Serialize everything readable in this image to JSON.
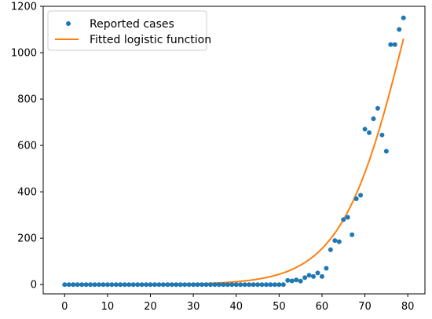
{
  "chart_data": {
    "type": "scatter",
    "xlim": [
      -5,
      84
    ],
    "ylim": [
      -40,
      1200
    ],
    "xticks": [
      0,
      10,
      20,
      30,
      40,
      50,
      60,
      70,
      80
    ],
    "yticks": [
      0,
      200,
      400,
      600,
      800,
      1000,
      1200
    ],
    "legend_position": "upper-left",
    "series": [
      {
        "name": "Reported cases",
        "kind": "markers",
        "color": "#1f77b4",
        "x": [
          0,
          1,
          2,
          3,
          4,
          5,
          6,
          7,
          8,
          9,
          10,
          11,
          12,
          13,
          14,
          15,
          16,
          17,
          18,
          19,
          20,
          21,
          22,
          23,
          24,
          25,
          26,
          27,
          28,
          29,
          30,
          31,
          32,
          33,
          34,
          35,
          36,
          37,
          38,
          39,
          40,
          41,
          42,
          43,
          44,
          45,
          46,
          47,
          48,
          49,
          50,
          51,
          52,
          53,
          54,
          55,
          56,
          57,
          58,
          59,
          60,
          61,
          62,
          63,
          64,
          65,
          66,
          67,
          68,
          69,
          70,
          71,
          72,
          73,
          74,
          75,
          76,
          77,
          78,
          79
        ],
        "y": [
          0,
          0,
          0,
          0,
          0,
          0,
          0,
          0,
          0,
          0,
          0,
          0,
          0,
          0,
          0,
          0,
          0,
          0,
          0,
          0,
          0,
          0,
          0,
          0,
          0,
          0,
          0,
          0,
          0,
          0,
          0,
          0,
          0,
          0,
          0,
          0,
          0,
          0,
          0,
          0,
          0,
          0,
          0,
          0,
          0,
          0,
          0,
          0,
          0,
          0,
          0,
          0,
          18,
          16,
          20,
          15,
          30,
          40,
          35,
          50,
          35,
          70,
          150,
          190,
          185,
          280,
          290,
          215,
          370,
          385,
          670,
          655,
          715,
          760,
          645,
          575,
          1035,
          1035,
          1100,
          1150
        ]
      },
      {
        "name": "Fitted logistic function",
        "kind": "line",
        "color": "#ff7f0e",
        "params": {
          "L": 2300,
          "k": 0.13,
          "x0": 80.2
        }
      }
    ]
  }
}
